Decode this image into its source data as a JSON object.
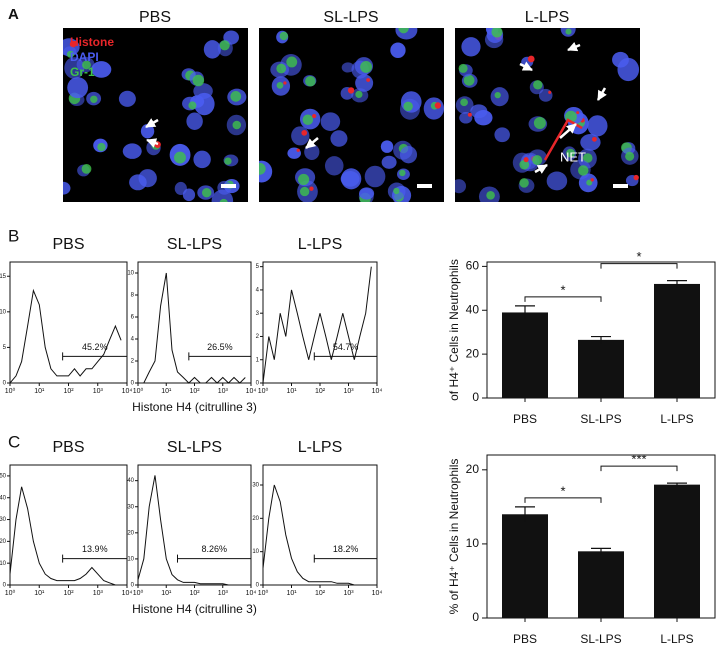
{
  "labels": {
    "a": "A",
    "b": "B",
    "c": "C"
  },
  "micrographs": {
    "titles": [
      "PBS",
      "SL-LPS",
      "L-LPS"
    ],
    "stains": [
      {
        "name": "Histone",
        "color": "#e8262a"
      },
      {
        "name": "DAPI",
        "color": "#4a5cf0"
      },
      {
        "name": "Gr-1",
        "color": "#3ec24a"
      }
    ],
    "annotation": "NET"
  },
  "chart_data": [
    {
      "type": "line",
      "title": "PBS",
      "xscale": "log",
      "xlim": [
        1,
        10000
      ],
      "x": [
        1,
        1.6,
        2.5,
        4,
        6.3,
        10,
        16,
        25,
        40,
        63,
        100,
        160,
        250,
        400,
        630,
        1000,
        1600,
        2500,
        4000,
        6300
      ],
      "values": [
        0,
        1,
        3,
        8,
        13,
        11,
        5,
        2,
        1,
        1,
        1,
        2,
        1,
        2,
        2,
        3,
        4,
        6,
        8,
        6
      ],
      "xticks": [
        {
          "value": 1,
          "label": "10⁰"
        },
        {
          "value": 10,
          "label": "10¹"
        },
        {
          "value": 100,
          "label": "10²"
        },
        {
          "value": 1000,
          "label": "10³"
        },
        {
          "value": 10000,
          "label": "10⁴"
        }
      ],
      "ylim": [
        0,
        17
      ],
      "yticks": [
        0,
        5,
        10,
        15
      ],
      "gate": [
        63,
        10000
      ],
      "gate_label": "45.2%",
      "color": "#111"
    },
    {
      "type": "line",
      "title": "SL-LPS",
      "xscale": "log",
      "xlim": [
        1,
        10000
      ],
      "x": [
        1,
        1.6,
        2.5,
        4,
        6.3,
        10,
        16,
        25,
        40,
        63,
        100,
        160,
        250,
        400,
        630,
        1000,
        1600,
        2500,
        4000,
        6300
      ],
      "values": [
        0,
        0,
        1,
        2,
        7,
        10,
        3,
        1,
        0.5,
        0,
        0.5,
        0,
        0,
        0.5,
        0,
        0.5,
        0,
        0.5,
        0,
        0.5
      ],
      "xticks": [
        {
          "value": 1,
          "label": "10⁰"
        },
        {
          "value": 10,
          "label": "10¹"
        },
        {
          "value": 100,
          "label": "10²"
        },
        {
          "value": 1000,
          "label": "10³"
        },
        {
          "value": 10000,
          "label": "10⁴"
        }
      ],
      "ylim": [
        0,
        11
      ],
      "yticks": [
        0,
        2,
        4,
        6,
        8,
        10
      ],
      "gate": [
        63,
        10000
      ],
      "gate_label": "26.5%",
      "color": "#111",
      "x_label": "Histone H4 (citrulline 3)"
    },
    {
      "type": "line",
      "title": "L-LPS",
      "xscale": "log",
      "xlim": [
        1,
        10000
      ],
      "x": [
        1,
        1.6,
        2.5,
        4,
        6.3,
        10,
        16,
        25,
        40,
        63,
        100,
        160,
        250,
        400,
        630,
        1000,
        1600,
        2500,
        4000,
        6300
      ],
      "values": [
        0,
        2,
        1,
        3,
        2,
        4,
        3,
        2,
        1,
        2,
        3,
        2,
        1,
        2,
        3,
        2,
        1,
        2,
        3,
        5
      ],
      "xticks": [
        {
          "value": 1,
          "label": "10⁰"
        },
        {
          "value": 10,
          "label": "10¹"
        },
        {
          "value": 100,
          "label": "10²"
        },
        {
          "value": 1000,
          "label": "10³"
        },
        {
          "value": 10000,
          "label": "10⁴"
        }
      ],
      "ylim": [
        0,
        5.2
      ],
      "yticks": [
        0,
        1,
        2,
        3,
        4,
        5
      ],
      "gate": [
        63,
        10000
      ],
      "gate_label": "54.7%",
      "color": "#111"
    },
    {
      "type": "bar",
      "categories": [
        "PBS",
        "SL-LPS",
        "L-LPS"
      ],
      "values": [
        39,
        26.5,
        52
      ],
      "errors": [
        3,
        1.5,
        1.5
      ],
      "ylim": [
        0,
        62
      ],
      "yticks": [
        0,
        20,
        40,
        60
      ],
      "y_label": "of H4⁺ Cells in Neutrophils",
      "annotations": [
        "*",
        "*"
      ],
      "color": "#111"
    },
    {
      "type": "line",
      "title": "PBS",
      "xscale": "log",
      "xlim": [
        1,
        10000
      ],
      "x": [
        1,
        1.6,
        2.5,
        4,
        6.3,
        10,
        16,
        25,
        40,
        63,
        100,
        160,
        250,
        400,
        630,
        1000,
        1600,
        2500,
        4000,
        6300
      ],
      "values": [
        5,
        30,
        45,
        35,
        20,
        10,
        5,
        3,
        2,
        2,
        2,
        2,
        3,
        5,
        8,
        5,
        2,
        1,
        0,
        0
      ],
      "xticks": [
        {
          "value": 1,
          "label": "10⁰"
        },
        {
          "value": 10,
          "label": "10¹"
        },
        {
          "value": 100,
          "label": "10²"
        },
        {
          "value": 1000,
          "label": "10³"
        },
        {
          "value": 10000,
          "label": "10⁴"
        }
      ],
      "ylim": [
        0,
        55
      ],
      "yticks": [
        0,
        10,
        20,
        30,
        40,
        50
      ],
      "gate": [
        63,
        10000
      ],
      "gate_label": "13.9%",
      "color": "#111"
    },
    {
      "type": "line",
      "title": "SL-LPS",
      "xscale": "log",
      "xlim": [
        1,
        10000
      ],
      "x": [
        1,
        1.6,
        2.5,
        4,
        6.3,
        10,
        16,
        25,
        40,
        63,
        100,
        160,
        250,
        400,
        630,
        1000,
        1600,
        2500,
        4000,
        6300
      ],
      "values": [
        2,
        10,
        30,
        42,
        25,
        10,
        4,
        2,
        1,
        1,
        1,
        0.5,
        0.5,
        0.5,
        0.5,
        0.5,
        0,
        0,
        0,
        0
      ],
      "xticks": [
        {
          "value": 1,
          "label": "10⁰"
        },
        {
          "value": 10,
          "label": "10¹"
        },
        {
          "value": 100,
          "label": "10²"
        },
        {
          "value": 1000,
          "label": "10³"
        },
        {
          "value": 10000,
          "label": "10⁴"
        }
      ],
      "ylim": [
        0,
        46
      ],
      "yticks": [
        0,
        10,
        20,
        30,
        40
      ],
      "gate": [
        25,
        10000
      ],
      "gate_label": "8.26%",
      "color": "#111",
      "x_label": "Histone H4 (citrulline 3)"
    },
    {
      "type": "line",
      "title": "L-LPS",
      "xscale": "log",
      "xlim": [
        1,
        10000
      ],
      "x": [
        1,
        1.6,
        2.5,
        4,
        6.3,
        10,
        16,
        25,
        40,
        63,
        100,
        160,
        250,
        400,
        630,
        1000,
        1600,
        2500,
        4000,
        6300
      ],
      "values": [
        5,
        20,
        30,
        25,
        15,
        8,
        4,
        2,
        1,
        1,
        1,
        1,
        1,
        0.5,
        0.5,
        0.5,
        0,
        0,
        0,
        0
      ],
      "xticks": [
        {
          "value": 1,
          "label": "10⁰"
        },
        {
          "value": 10,
          "label": "10¹"
        },
        {
          "value": 100,
          "label": "10²"
        },
        {
          "value": 1000,
          "label": "10³"
        },
        {
          "value": 10000,
          "label": "10⁴"
        }
      ],
      "ylim": [
        0,
        36
      ],
      "yticks": [
        0,
        10,
        20,
        30
      ],
      "gate": [
        63,
        10000
      ],
      "gate_label": "18.2%",
      "color": "#111"
    },
    {
      "type": "bar",
      "categories": [
        "PBS",
        "SL-LPS",
        "L-LPS"
      ],
      "values": [
        14,
        9,
        18
      ],
      "errors": [
        1,
        0.4,
        0.2
      ],
      "ylim": [
        0,
        22
      ],
      "yticks": [
        0,
        10,
        20
      ],
      "y_label": "% of H4⁺ Cells in Neutrophils",
      "annotations": [
        "*",
        "***"
      ],
      "color": "#111"
    }
  ]
}
